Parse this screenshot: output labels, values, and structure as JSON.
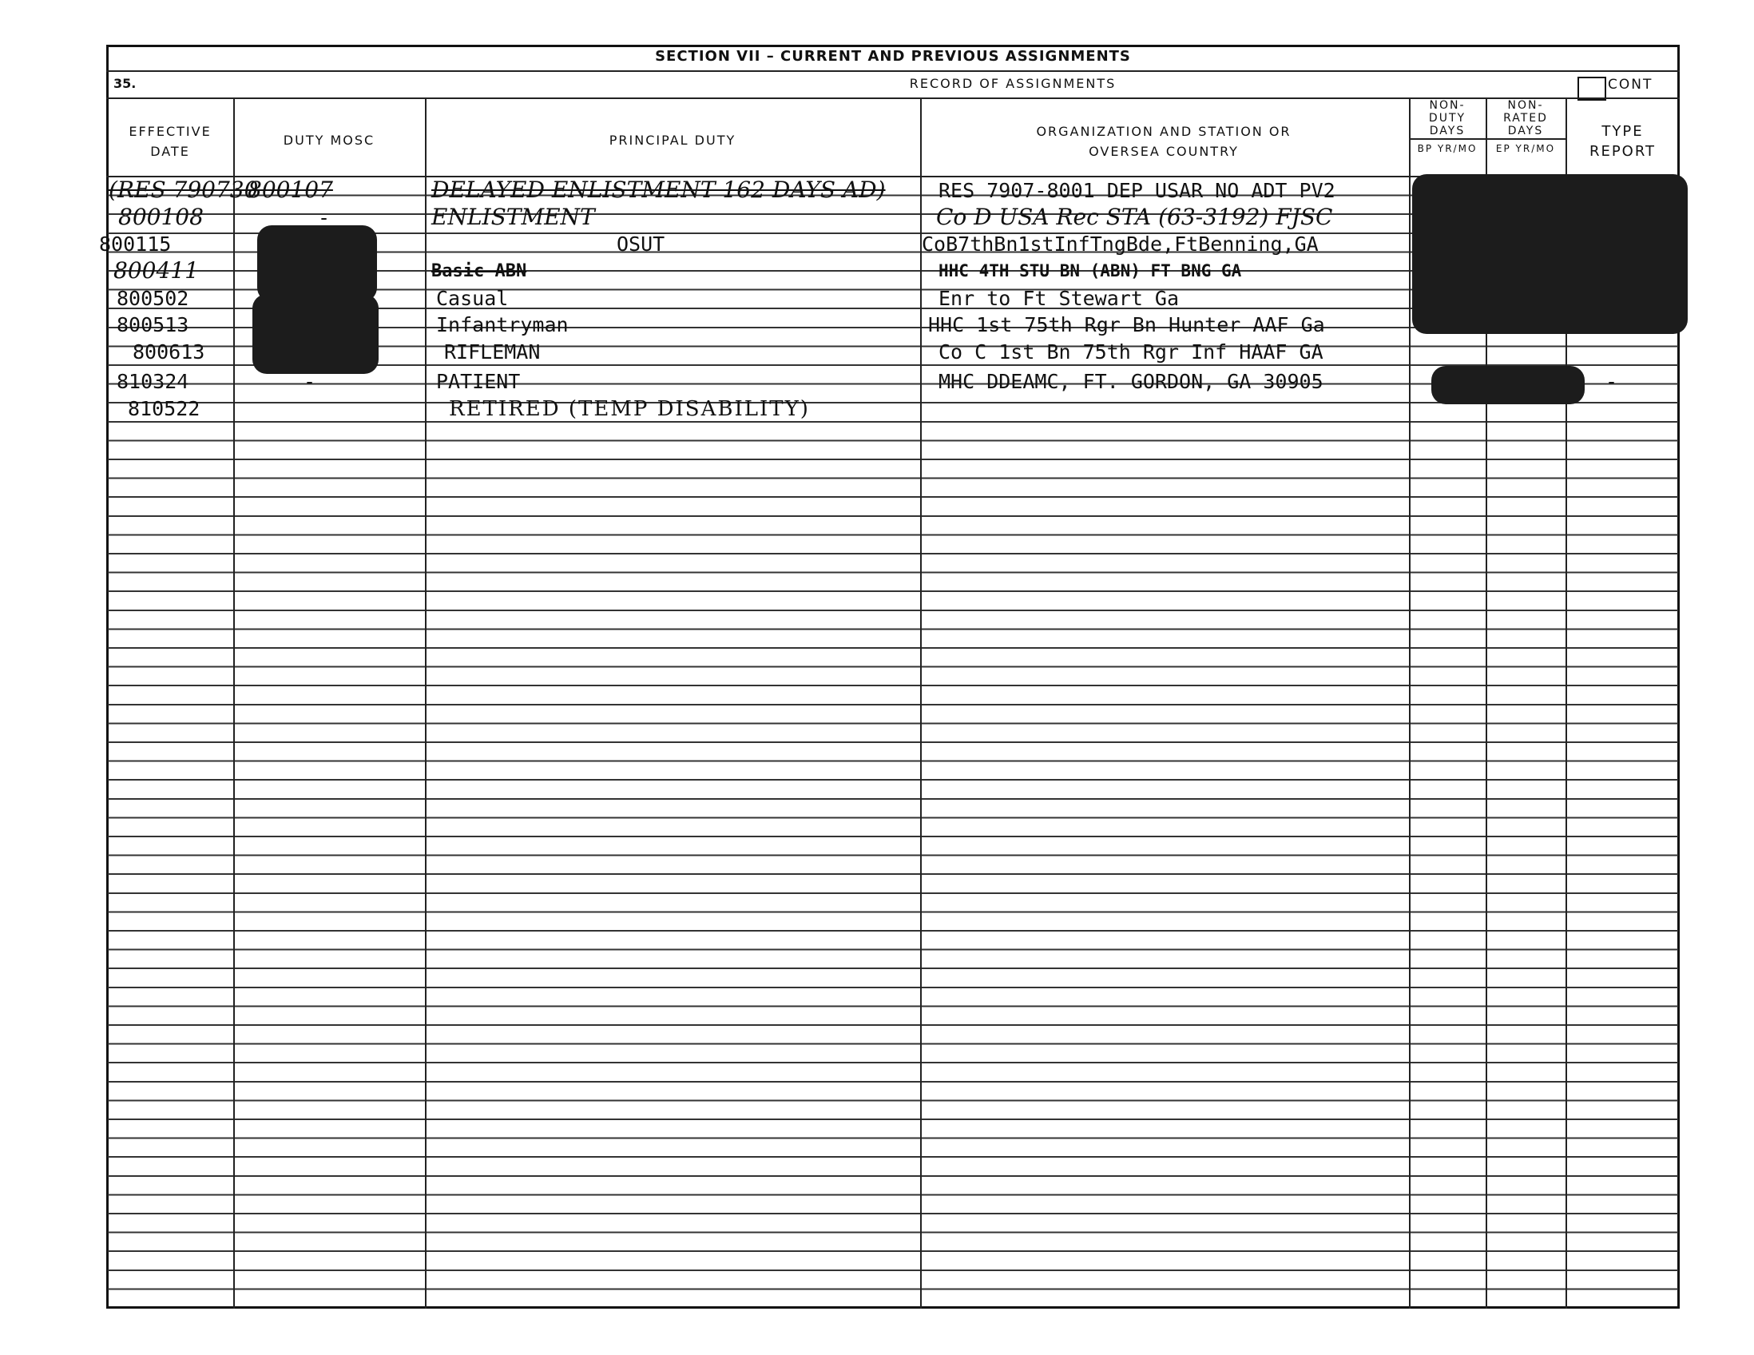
{
  "form": {
    "section_title": "SECTION VII – CURRENT AND PREVIOUS ASSIGNMENTS",
    "item_number": "35.",
    "record_title": "RECORD OF ASSIGNMENTS",
    "cont_label": "CONT",
    "columns": {
      "effective_date": "EFFECTIVE DATE",
      "duty_mosc": "DUTY MOSC",
      "principal_duty": "PRINCIPAL DUTY",
      "organization": "ORGANIZATION AND STATION OR OVERSEA COUNTRY",
      "non_duty_days": "NON- DUTY DAYS",
      "non_duty_sub": "BP YR/MO",
      "non_rated_days": "NON- RATED DAYS",
      "non_rated_sub": "EP YR/MO",
      "type_report": "TYPE REPORT"
    }
  },
  "rows": [
    {
      "date": "(RES 790730",
      "mosc": "800107",
      "duty": "DELAYED ENLISTMENT 162 DAYS AD)",
      "org": "RES 7907-8001 DEP USAR NO ADT PV2",
      "type": ""
    },
    {
      "date": "800108",
      "mosc": "-",
      "duty": "ENLISTMENT",
      "org": "Co D USA Rec STA (63-3192) FJSC",
      "type": ""
    },
    {
      "date": "800115",
      "mosc": "",
      "duty": "OSUT",
      "org": "CoB7thBn1stInfTngBde,FtBenning,GA",
      "type": ""
    },
    {
      "date": "800411",
      "mosc": "",
      "duty": "Basic ABN",
      "org": "HHC 4TH STU BN (ABN) FT BNG GA",
      "type": ""
    },
    {
      "date": "800502",
      "mosc": "",
      "duty": "Casual",
      "org": "Enr to Ft Stewart Ga",
      "type": ""
    },
    {
      "date": "800513",
      "mosc": "",
      "duty": "Infantryman",
      "org": "HHC 1st 75th Rgr Bn Hunter AAF Ga",
      "type": ""
    },
    {
      "date": "800613",
      "mosc": "",
      "duty": "RIFLEMAN",
      "org": "Co C 1st Bn 75th Rgr Inf HAAF GA",
      "type": ""
    },
    {
      "date": "810324",
      "mosc": "-",
      "duty": "PATIENT",
      "org": "MHC DDEAMC, FT. GORDON, GA 30905",
      "type": "-"
    },
    {
      "date": "810522",
      "mosc": "",
      "duty": "RETIRED (TEMP DISABILITY)",
      "org": "",
      "type": ""
    }
  ]
}
